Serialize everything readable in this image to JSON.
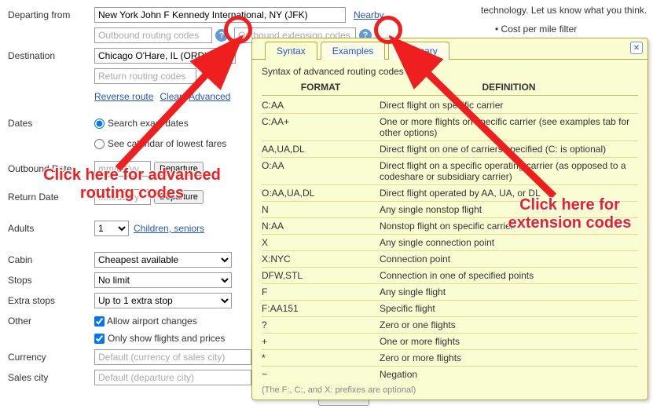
{
  "labels": {
    "departing": "Departing from",
    "destination": "Destination",
    "dates": "Dates",
    "outbound": "Outbound Date",
    "ret": "Return Date",
    "adults": "Adults",
    "cabin": "Cabin",
    "stops": "Stops",
    "extra": "Extra stops",
    "other": "Other",
    "currency": "Currency",
    "sales": "Sales city"
  },
  "fields": {
    "departing_value": "New York John F Kennedy International, NY (JFK)",
    "destination_value": "Chicago O'Hare, IL (ORD)",
    "outbound_routing_ph": "Outbound routing codes",
    "outbound_ext_ph": "Outbound extension codes",
    "return_routing_ph": "Return routing codes",
    "date_ph": "mm/dd/yy",
    "currency_ph": "Default (currency of sales city)",
    "sales_ph": "Default (departure city)"
  },
  "links": {
    "nearby": "Nearby",
    "reverse": "Reverse route",
    "clear": "Clear",
    "advanced": "Advanced",
    "children": "Children, seniors"
  },
  "buttons": {
    "departure": "Departure",
    "search": "Search"
  },
  "radios": {
    "exact": "Search exact dates",
    "calendar": "See calendar of lowest fares"
  },
  "selects": {
    "adults": "1",
    "cabin": "Cheapest available",
    "stops": "No limit",
    "extra": "Up to 1 extra stop"
  },
  "checks": {
    "airport": "Allow airport changes",
    "only": "Only show flights and prices"
  },
  "tooltip": {
    "tabs": {
      "syntax": "Syntax",
      "examples": "Examples",
      "glossary": "Glossary"
    },
    "title": "Syntax of advanced routing codes",
    "head_format": "FORMAT",
    "head_def": "DEFINITION",
    "rows": [
      {
        "f": "C:AA",
        "d": "Direct flight on specific carrier"
      },
      {
        "f": "C:AA+",
        "d": "One or more flights on specific carrier (see examples tab for other options)"
      },
      {
        "f": "AA,UA,DL",
        "d": "Direct flight on one of carriers specified (C: is optional)"
      },
      {
        "f": "O:AA",
        "d": "Direct flight on a specific operating carrier (as opposed to a codeshare or subsidiary carrier)"
      },
      {
        "f": "O:AA,UA,DL",
        "d": "Direct flight operated by AA, UA, or DL"
      },
      {
        "f": "N",
        "d": "Any single nonstop flight"
      },
      {
        "f": "N:AA",
        "d": "Nonstop flight on specific carrier"
      },
      {
        "f": "X",
        "d": "Any single connection point"
      },
      {
        "f": "X:NYC",
        "d": "Connection point"
      },
      {
        "f": "DFW,STL",
        "d": "Connection in one of specified points"
      },
      {
        "f": "F",
        "d": "Any single flight"
      },
      {
        "f": "F:AA151",
        "d": "Specific flight"
      },
      {
        "f": "?",
        "d": "Zero or one flights"
      },
      {
        "f": "+",
        "d": "One or more flights"
      },
      {
        "f": "*",
        "d": "Zero or more flights"
      },
      {
        "f": "~",
        "d": "Negation"
      }
    ],
    "foot": "(The F:, C:, and X: prefixes are optional)"
  },
  "right": {
    "line1": "technology. Let us know what you think.",
    "bullet": "Cost per mile filter"
  },
  "anno": {
    "routing": "Click here for advanced routing codes",
    "ext": "Click here for extension codes"
  }
}
